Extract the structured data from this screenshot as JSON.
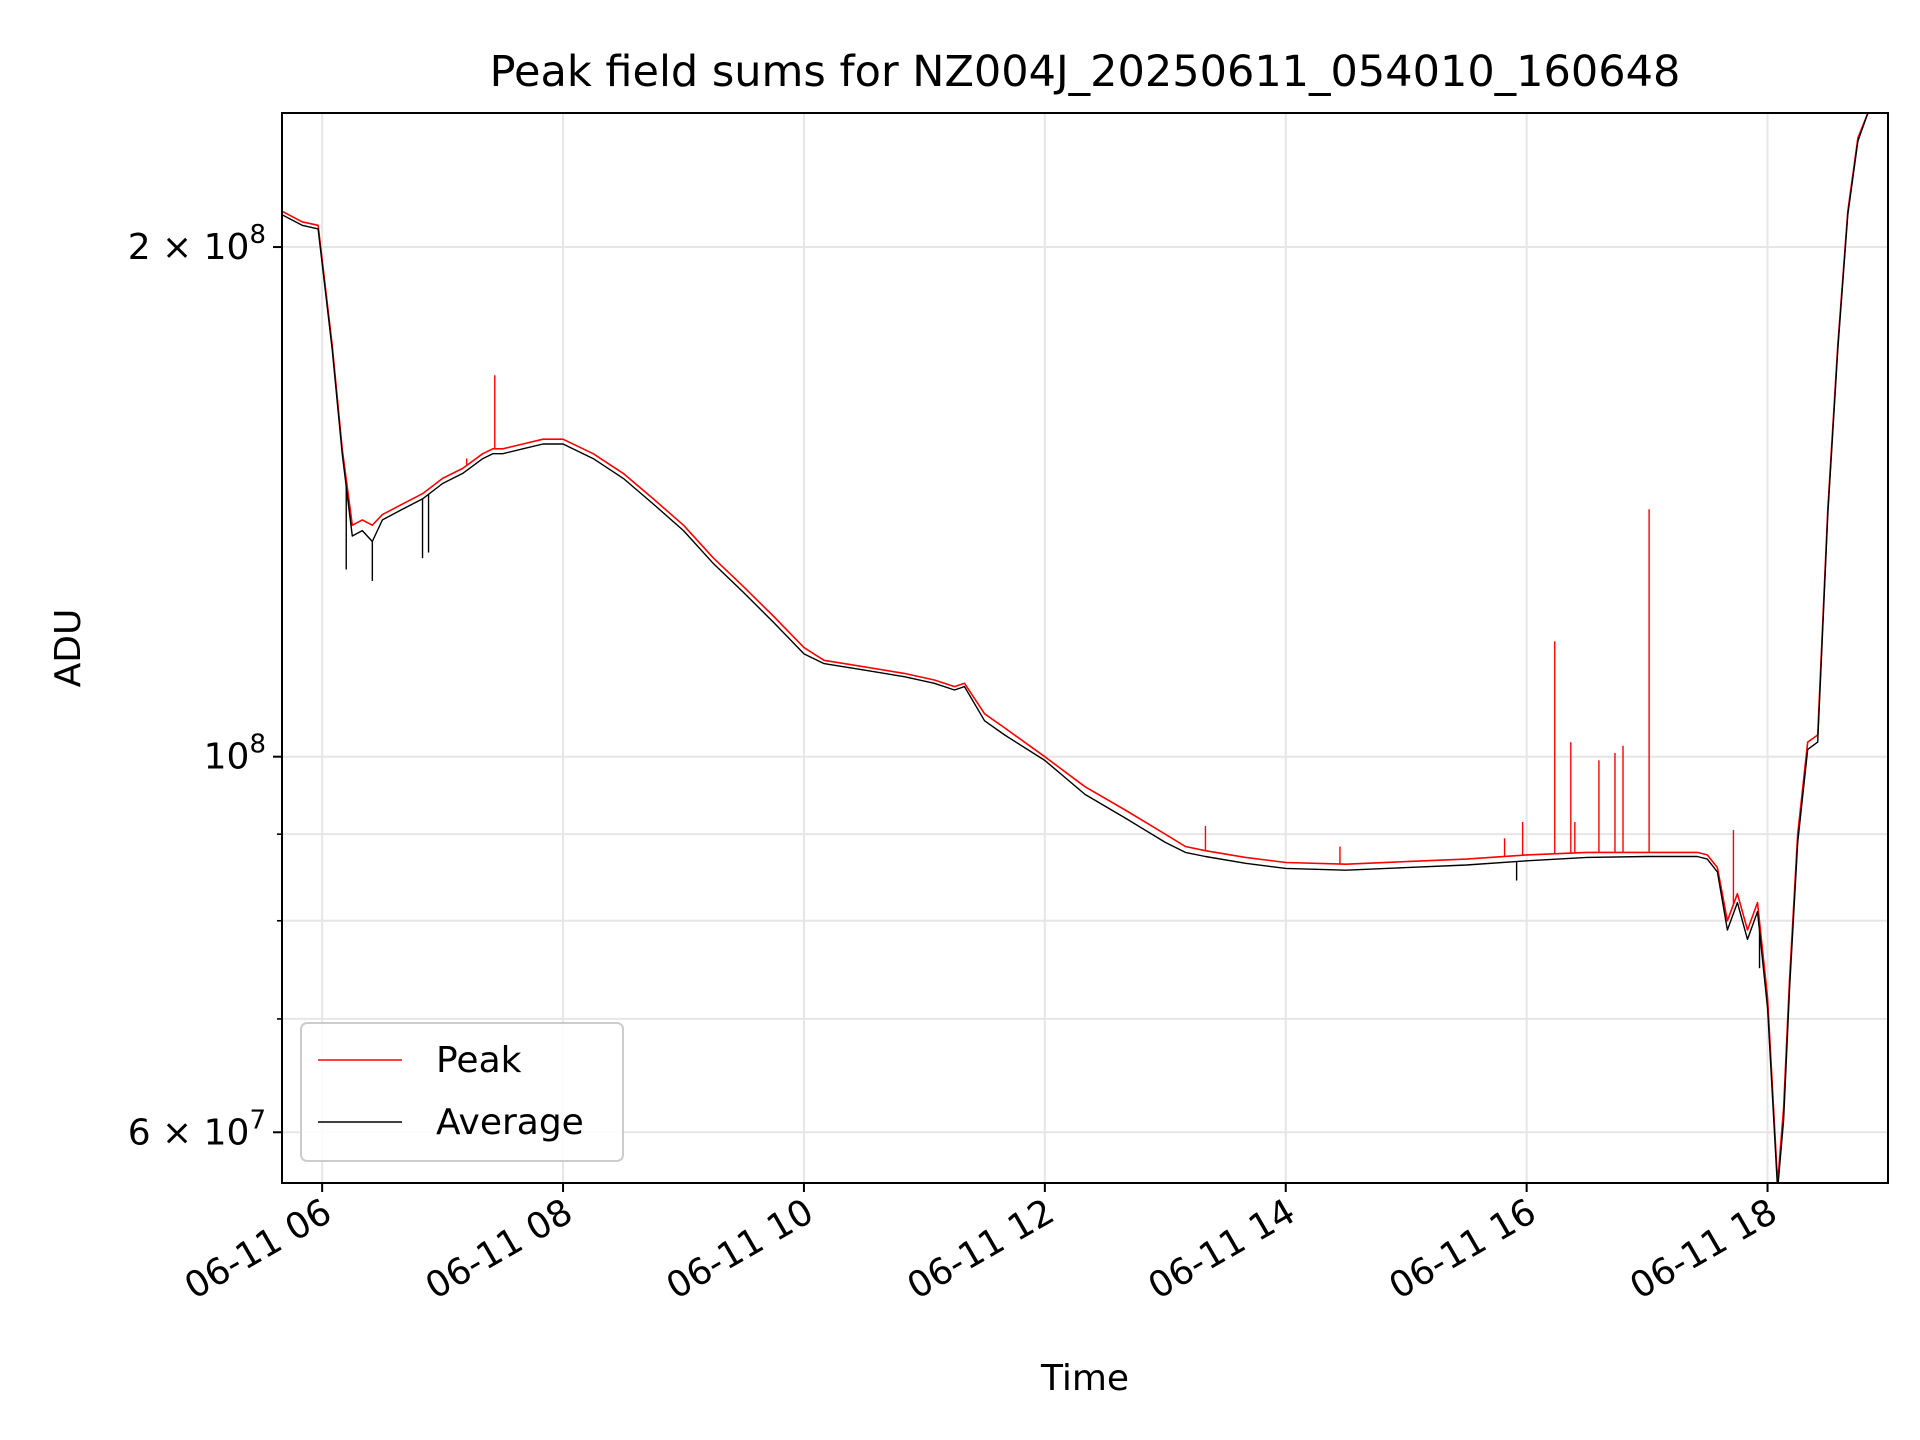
{
  "chart_data": {
    "type": "line",
    "title": "Peak field sums for NZ004J_20250611_054010_160648",
    "xlabel": "Time",
    "ylabel": "ADU",
    "xscale": "time",
    "yscale": "log",
    "xlim": [
      "2025-06-11 05:40",
      "2025-06-11 19:00"
    ],
    "ylim": [
      56000000,
      240000000
    ],
    "grid": true,
    "legend_position": "lower left",
    "x_ticks": [
      {
        "value": "2025-06-11 06:00",
        "label": "06-11 06"
      },
      {
        "value": "2025-06-11 08:00",
        "label": "06-11 08"
      },
      {
        "value": "2025-06-11 10:00",
        "label": "06-11 10"
      },
      {
        "value": "2025-06-11 12:00",
        "label": "06-11 12"
      },
      {
        "value": "2025-06-11 14:00",
        "label": "06-11 14"
      },
      {
        "value": "2025-06-11 16:00",
        "label": "06-11 16"
      },
      {
        "value": "2025-06-11 18:00",
        "label": "06-11 18"
      }
    ],
    "y_ticks": [
      {
        "value": 60000000,
        "label": "6 × 10",
        "exp": "7"
      },
      {
        "value": 100000000,
        "label": "10",
        "exp": "8"
      },
      {
        "value": 200000000,
        "label": "2 × 10",
        "exp": "8"
      }
    ],
    "y_minor_ticks": [
      70000000,
      80000000,
      90000000
    ],
    "colors": {
      "Peak": "#ff0000",
      "Average": "#000000",
      "grid": "#e6e6e6"
    },
    "series": [
      {
        "name": "Peak",
        "color": "#ff0000",
        "x": [
          "2025-06-11 05:40",
          "2025-06-11 05:50",
          "2025-06-11 05:58",
          "2025-06-11 06:05",
          "2025-06-11 06:10",
          "2025-06-11 06:15",
          "2025-06-11 06:20",
          "2025-06-11 06:25",
          "2025-06-11 06:30",
          "2025-06-11 06:40",
          "2025-06-11 06:50",
          "2025-06-11 07:00",
          "2025-06-11 07:10",
          "2025-06-11 07:20",
          "2025-06-11 07:25",
          "2025-06-11 07:30",
          "2025-06-11 07:40",
          "2025-06-11 07:50",
          "2025-06-11 08:00",
          "2025-06-11 08:15",
          "2025-06-11 08:30",
          "2025-06-11 08:45",
          "2025-06-11 09:00",
          "2025-06-11 09:15",
          "2025-06-11 09:30",
          "2025-06-11 09:45",
          "2025-06-11 10:00",
          "2025-06-11 10:10",
          "2025-06-11 10:30",
          "2025-06-11 10:50",
          "2025-06-11 11:05",
          "2025-06-11 11:15",
          "2025-06-11 11:20",
          "2025-06-11 11:30",
          "2025-06-11 11:40",
          "2025-06-11 12:00",
          "2025-06-11 12:20",
          "2025-06-11 12:40",
          "2025-06-11 13:00",
          "2025-06-11 13:10",
          "2025-06-11 13:20",
          "2025-06-11 13:40",
          "2025-06-11 14:00",
          "2025-06-11 14:30",
          "2025-06-11 15:00",
          "2025-06-11 15:30",
          "2025-06-11 16:00",
          "2025-06-11 16:30",
          "2025-06-11 17:00",
          "2025-06-11 17:25",
          "2025-06-11 17:30",
          "2025-06-11 17:35",
          "2025-06-11 17:40",
          "2025-06-11 17:45",
          "2025-06-11 17:50",
          "2025-06-11 17:55",
          "2025-06-11 18:00",
          "2025-06-11 18:05",
          "2025-06-11 18:08",
          "2025-06-11 18:11",
          "2025-06-11 18:15",
          "2025-06-11 18:20",
          "2025-06-11 18:25",
          "2025-06-11 18:30",
          "2025-06-11 18:35",
          "2025-06-11 18:40",
          "2025-06-11 18:45",
          "2025-06-11 18:50",
          "2025-06-11 19:00"
        ],
        "y": [
          210000000,
          207000000,
          206000000,
          175000000,
          152000000,
          137000000,
          138000000,
          137000000,
          139000000,
          141000000,
          143000000,
          146000000,
          148000000,
          151000000,
          152000000,
          152000000,
          153000000,
          154000000,
          154000000,
          151000000,
          147000000,
          142000000,
          137000000,
          131000000,
          126000000,
          121000000,
          116000000,
          114000000,
          113000000,
          112000000,
          111000000,
          110000000,
          110500000,
          106000000,
          104000000,
          100000000,
          96000000,
          93000000,
          90000000,
          88500000,
          88000000,
          87200000,
          86600000,
          86400000,
          86700000,
          87000000,
          87500000,
          87800000,
          87800000,
          87800000,
          87500000,
          86000000,
          80000000,
          83000000,
          79000000,
          82000000,
          72000000,
          56000000,
          62000000,
          74000000,
          90000000,
          102000000,
          103000000,
          140000000,
          175000000,
          210000000,
          232000000,
          240000000,
          240000000
        ]
      },
      {
        "name": "Average",
        "color": "#000000",
        "x": [
          "2025-06-11 05:40",
          "2025-06-11 05:50",
          "2025-06-11 05:58",
          "2025-06-11 06:05",
          "2025-06-11 06:10",
          "2025-06-11 06:15",
          "2025-06-11 06:20",
          "2025-06-11 06:25",
          "2025-06-11 06:30",
          "2025-06-11 06:40",
          "2025-06-11 06:50",
          "2025-06-11 07:00",
          "2025-06-11 07:10",
          "2025-06-11 07:20",
          "2025-06-11 07:25",
          "2025-06-11 07:30",
          "2025-06-11 07:40",
          "2025-06-11 07:50",
          "2025-06-11 08:00",
          "2025-06-11 08:15",
          "2025-06-11 08:30",
          "2025-06-11 08:45",
          "2025-06-11 09:00",
          "2025-06-11 09:15",
          "2025-06-11 09:30",
          "2025-06-11 09:45",
          "2025-06-11 10:00",
          "2025-06-11 10:10",
          "2025-06-11 10:30",
          "2025-06-11 10:50",
          "2025-06-11 11:05",
          "2025-06-11 11:15",
          "2025-06-11 11:20",
          "2025-06-11 11:30",
          "2025-06-11 11:40",
          "2025-06-11 12:00",
          "2025-06-11 12:20",
          "2025-06-11 12:40",
          "2025-06-11 13:00",
          "2025-06-11 13:10",
          "2025-06-11 13:20",
          "2025-06-11 13:40",
          "2025-06-11 14:00",
          "2025-06-11 14:30",
          "2025-06-11 15:00",
          "2025-06-11 15:30",
          "2025-06-11 16:00",
          "2025-06-11 16:30",
          "2025-06-11 17:00",
          "2025-06-11 17:25",
          "2025-06-11 17:30",
          "2025-06-11 17:35",
          "2025-06-11 17:40",
          "2025-06-11 17:45",
          "2025-06-11 17:50",
          "2025-06-11 17:55",
          "2025-06-11 18:00",
          "2025-06-11 18:05",
          "2025-06-11 18:08",
          "2025-06-11 18:11",
          "2025-06-11 18:15",
          "2025-06-11 18:20",
          "2025-06-11 18:25",
          "2025-06-11 18:30",
          "2025-06-11 18:35",
          "2025-06-11 18:40",
          "2025-06-11 18:45",
          "2025-06-11 18:50",
          "2025-06-11 19:00"
        ],
        "y": [
          209000000,
          206000000,
          205000000,
          174000000,
          151000000,
          135000000,
          136000000,
          134000000,
          138000000,
          140000000,
          142000000,
          145000000,
          147000000,
          150000000,
          151000000,
          151000000,
          152000000,
          153000000,
          153000000,
          150000000,
          146000000,
          141000000,
          136000000,
          130000000,
          125000000,
          120000000,
          115000000,
          113500000,
          112500000,
          111500000,
          110500000,
          109500000,
          110000000,
          105000000,
          103000000,
          99500000,
          95000000,
          92000000,
          89000000,
          87800000,
          87300000,
          86500000,
          85900000,
          85700000,
          86000000,
          86300000,
          86800000,
          87200000,
          87300000,
          87300000,
          87000000,
          85500000,
          79000000,
          82000000,
          78000000,
          81000000,
          71000000,
          55500000,
          61000000,
          73000000,
          89000000,
          101000000,
          102000000,
          139000000,
          174000000,
          209000000,
          231000000,
          240000000,
          240000000
        ]
      }
    ],
    "spikes": [
      {
        "series": "Peak",
        "x": "2025-06-11 07:12",
        "y": 150000000
      },
      {
        "series": "Peak",
        "x": "2025-06-11 07:26",
        "y": 168000000
      },
      {
        "series": "Peak",
        "x": "2025-06-11 13:20",
        "y": 91000000
      },
      {
        "series": "Peak",
        "x": "2025-06-11 14:27",
        "y": 88500000
      },
      {
        "series": "Peak",
        "x": "2025-06-11 15:49",
        "y": 89500000
      },
      {
        "series": "Peak",
        "x": "2025-06-11 15:58",
        "y": 91500000
      },
      {
        "series": "Peak",
        "x": "2025-06-11 16:14",
        "y": 117000000
      },
      {
        "series": "Peak",
        "x": "2025-06-11 16:22",
        "y": 102000000
      },
      {
        "series": "Peak",
        "x": "2025-06-11 16:24",
        "y": 91500000
      },
      {
        "series": "Peak",
        "x": "2025-06-11 16:36",
        "y": 99500000
      },
      {
        "series": "Peak",
        "x": "2025-06-11 16:44",
        "y": 100500000
      },
      {
        "series": "Peak",
        "x": "2025-06-11 16:48",
        "y": 101500000
      },
      {
        "series": "Peak",
        "x": "2025-06-11 17:01",
        "y": 140000000
      },
      {
        "series": "Peak",
        "x": "2025-06-11 17:43",
        "y": 90500000
      },
      {
        "series": "Average",
        "x": "2025-06-11 06:12",
        "y": 129000000
      },
      {
        "series": "Average",
        "x": "2025-06-11 06:25",
        "y": 127000000
      },
      {
        "series": "Average",
        "x": "2025-06-11 06:50",
        "y": 131000000
      },
      {
        "series": "Average",
        "x": "2025-06-11 06:53",
        "y": 132000000
      },
      {
        "series": "Average",
        "x": "2025-06-11 15:55",
        "y": 84500000
      },
      {
        "series": "Average",
        "x": "2025-06-11 17:56",
        "y": 75000000
      }
    ]
  }
}
